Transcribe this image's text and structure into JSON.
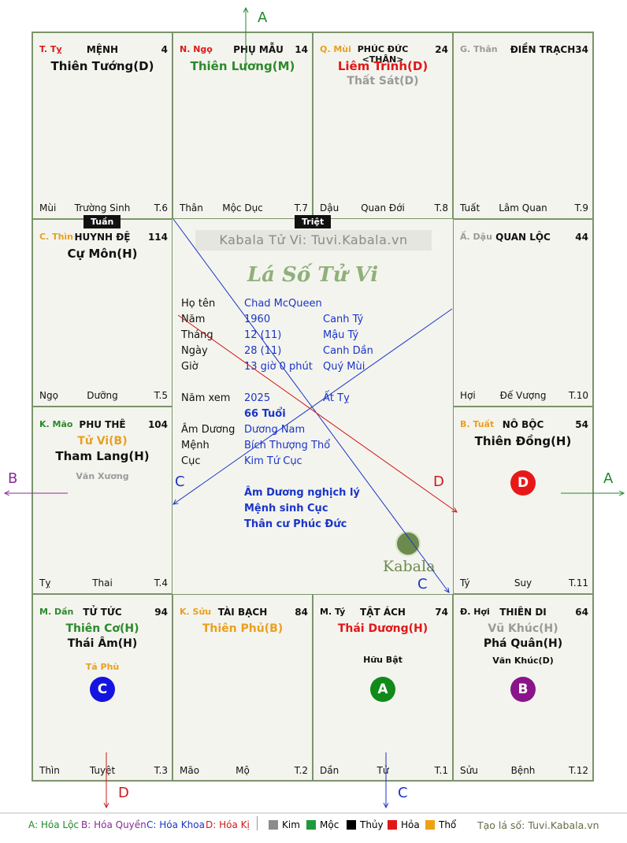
{
  "watermark": "Kabala Tử Vi: Tuvi.Kabala.vn",
  "center_title": "Lá Số Tử Vi",
  "brand": "Kabala",
  "tags": {
    "tuan": "Tuần",
    "triet": "Triệt"
  },
  "cells": {
    "ty_m": {
      "can": "T. Tỵ",
      "cung": "MỆNH",
      "num": "4",
      "stars": [
        "Thiên Tướng(D)"
      ],
      "bl": "Mùi",
      "bc": "Trường Sinh",
      "br": "T.6"
    },
    "ngo": {
      "can": "N. Ngọ",
      "cung": "PHỤ MẪU",
      "num": "14",
      "stars": [
        "Thiên Lương(M)"
      ],
      "bl": "Thân",
      "bc": "Mộc Dục",
      "br": "T.7"
    },
    "mui": {
      "can": "Q. Mùi",
      "cung": "PHÚC ĐỨC <THÂN>",
      "num": "24",
      "stars": [
        "Liêm Trinh(D)",
        "Thất Sát(D)"
      ],
      "bl": "Dậu",
      "bc": "Quan Đới",
      "br": "T.8"
    },
    "than": {
      "can": "G. Thân",
      "cung": "ĐIỀN TRẠCH",
      "num": "34",
      "bl": "Tuất",
      "bc": "Lâm Quan",
      "br": "T.9"
    },
    "thin": {
      "can": "C. Thìn",
      "cung": "HUYNH ĐỆ",
      "num": "114",
      "stars": [
        "Cự Môn(H)"
      ],
      "bl": "Ngọ",
      "bc": "Dưỡng",
      "br": "T.5"
    },
    "dau": {
      "can": "Ấ. Dậu",
      "cung": "QUAN LỘC",
      "num": "44",
      "bl": "Hợi",
      "bc": "Đế Vượng",
      "br": "T.10"
    },
    "mao": {
      "can": "K. Mão",
      "cung": "PHU THÊ",
      "num": "104",
      "stars": [
        "Tử Vi(B)",
        "Tham Lang(H)"
      ],
      "minor": "Văn Xương",
      "bl": "Tỵ",
      "bc": "Thai",
      "br": "T.4"
    },
    "tuat": {
      "can": "B. Tuất",
      "cung": "NÔ BỘC",
      "num": "54",
      "stars": [
        "Thiên Đồng(H)"
      ],
      "circle": "D",
      "bl": "Tý",
      "bc": "Suy",
      "br": "T.11"
    },
    "dan": {
      "can": "M. Dần",
      "cung": "TỬ TỨC",
      "num": "94",
      "stars": [
        "Thiên Cơ(H)",
        "Thái Âm(H)"
      ],
      "minor": "Tả Phù",
      "circle": "C",
      "bl": "Thìn",
      "bc": "Tuyệt",
      "br": "T.3"
    },
    "suu": {
      "can": "K. Sửu",
      "cung": "TÀI BẠCH",
      "num": "84",
      "stars": [
        "Thiên Phủ(B)"
      ],
      "bl": "Mão",
      "bc": "Mộ",
      "br": "T.2"
    },
    "ty": {
      "can": "M. Tý",
      "cung": "TẬT ÁCH",
      "num": "74",
      "stars": [
        "Thái Dương(H)"
      ],
      "minor": "Hữu Bật",
      "circle": "A",
      "bl": "Dần",
      "bc": "Tử",
      "br": "T.1"
    },
    "hoi": {
      "can": "Đ. Hợi",
      "cung": "THIÊN DI",
      "num": "64",
      "stars": [
        "Vũ Khúc(H)",
        "Phá Quân(H)"
      ],
      "minor": "Văn Khúc(D)",
      "circle": "B",
      "bl": "Sửu",
      "bc": "Bệnh",
      "br": "T.12"
    }
  },
  "info": {
    "ho_ten_label": "Họ tên",
    "ho_ten": "Chad McQueen",
    "nam_label": "Năm",
    "nam": "1960",
    "nam_cc": "Canh Tý",
    "thang_label": "Tháng",
    "thang": "12 (11)",
    "thang_cc": "Mậu Tý",
    "ngay_label": "Ngày",
    "ngay": "28 (11)",
    "ngay_cc": "Canh Dần",
    "gio_label": "Giờ",
    "gio": "13 giờ 0 phút",
    "gio_cc": "Quý Mùi",
    "namxem_label": "Năm xem",
    "namxem": "2025",
    "namxem_cc": "Ất Tỵ",
    "tuoi": "66 Tuổi",
    "amduong_label": "Âm Dương",
    "amduong": "Dương Nam",
    "menh_label": "Mệnh",
    "menh": "Bích Thượng Thổ",
    "cuc_label": "Cục",
    "cuc": "Kim Tứ Cục",
    "notes": [
      "Âm Dương nghịch lý",
      "Mệnh sinh Cục",
      "Thân cư Phúc Đức"
    ]
  },
  "arrows": {
    "a": "A",
    "b": "B",
    "c": "C",
    "d": "D"
  },
  "legend": {
    "a": "A: Hóa Lộc",
    "b": "B: Hóa Quyền",
    "c": "C: Hóa Khoa",
    "d": "D: Hóa Kị",
    "kim": "Kim",
    "moc": "Mộc",
    "thuy": "Thủy",
    "hoa": "Hỏa",
    "tho": "Thổ",
    "site": "Tạo lá số: Tuvi.Kabala.vn"
  },
  "colors": {
    "kim": "#8c8c8c",
    "moc": "#1f9a3a",
    "thuy": "#000000",
    "hoa": "#e01818",
    "tho": "#f0a010",
    "grid": "#7a946a"
  }
}
